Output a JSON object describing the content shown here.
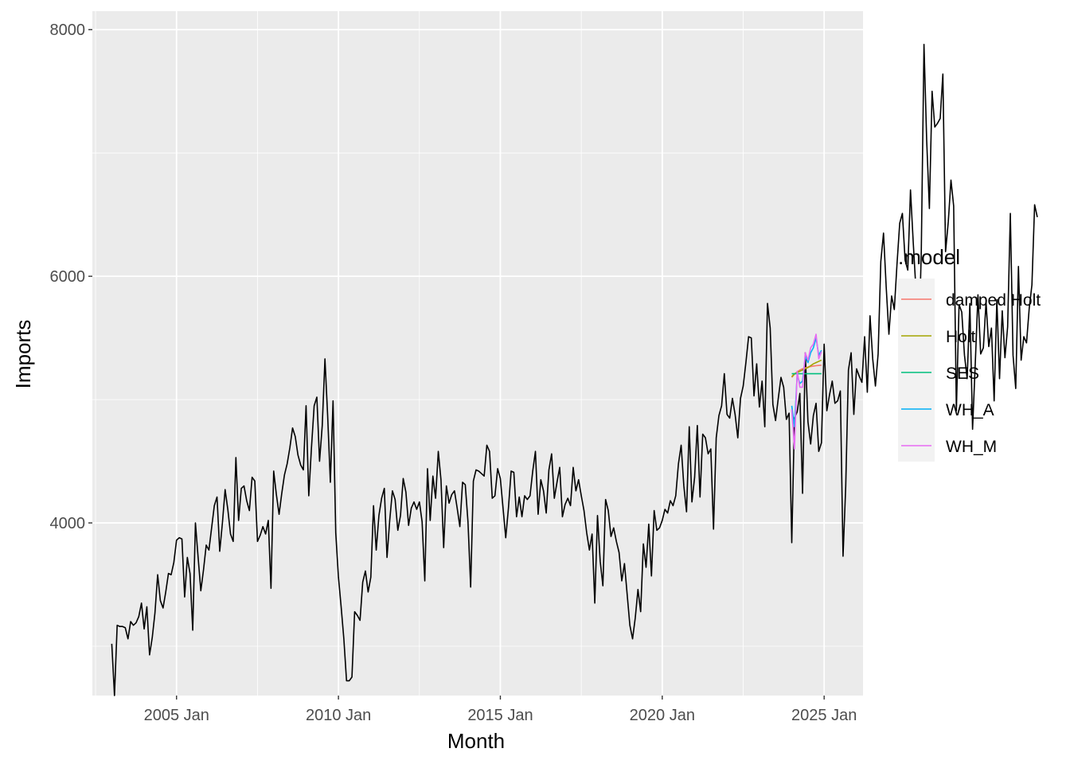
{
  "chart_data": {
    "type": "line",
    "xlabel": "Month",
    "ylabel": "Imports",
    "xlim": [
      2002.4,
      2026.2
    ],
    "ylim": [
      2600,
      8150
    ],
    "x_ticks": [
      2005,
      2010,
      2015,
      2020,
      2025
    ],
    "x_tick_labels": [
      "2005 Jan",
      "2010 Jan",
      "2015 Jan",
      "2020 Jan",
      "2025 Jan"
    ],
    "y_ticks": [
      4000,
      6000,
      8000
    ],
    "y_tick_labels": [
      "4000",
      "6000",
      "8000"
    ],
    "grid": true,
    "legend": {
      "title": ".model",
      "position": "right"
    },
    "actual": {
      "color": "#000000",
      "start": 2003.0,
      "step": 0.08333333,
      "values": [
        3020,
        2600,
        3170,
        3160,
        3160,
        3150,
        3060,
        3200,
        3170,
        3190,
        3240,
        3350,
        3140,
        3320,
        2930,
        3070,
        3270,
        3580,
        3370,
        3310,
        3440,
        3590,
        3580,
        3680,
        3860,
        3880,
        3870,
        3400,
        3720,
        3590,
        3130,
        4000,
        3720,
        3450,
        3620,
        3820,
        3780,
        3960,
        4140,
        4210,
        3770,
        4000,
        4270,
        4110,
        3910,
        3850,
        4530,
        4020,
        4280,
        4300,
        4180,
        4100,
        4370,
        4340,
        3850,
        3900,
        3970,
        3910,
        4020,
        3470,
        4420,
        4230,
        4070,
        4240,
        4390,
        4480,
        4610,
        4770,
        4700,
        4550,
        4470,
        4430,
        4950,
        4220,
        4610,
        4950,
        5020,
        4500,
        4790,
        5330,
        4870,
        4330,
        4990,
        3920,
        3560,
        3320,
        3060,
        2720,
        2720,
        2750,
        3280,
        3250,
        3210,
        3520,
        3610,
        3440,
        3560,
        4140,
        3780,
        4060,
        4200,
        4280,
        3720,
        4020,
        4260,
        4190,
        3940,
        4060,
        4360,
        4250,
        3980,
        4120,
        4170,
        4110,
        4170,
        4010,
        3530,
        4440,
        4020,
        4380,
        4200,
        4580,
        4350,
        3800,
        4300,
        4160,
        4230,
        4260,
        4120,
        3970,
        4330,
        4310,
        4010,
        3480,
        4340,
        4430,
        4420,
        4400,
        4380,
        4630,
        4580,
        4200,
        4220,
        4440,
        4360,
        4120,
        3880,
        4120,
        4420,
        4410,
        4050,
        4210,
        4050,
        4220,
        4190,
        4220,
        4420,
        4580,
        4070,
        4350,
        4260,
        4080,
        4430,
        4560,
        4200,
        4330,
        4450,
        4050,
        4150,
        4200,
        4140,
        4450,
        4260,
        4350,
        4220,
        4100,
        3920,
        3780,
        3910,
        3350,
        4060,
        3690,
        3490,
        4190,
        4100,
        3890,
        3960,
        3850,
        3760,
        3530,
        3670,
        3420,
        3170,
        3060,
        3230,
        3460,
        3280,
        3830,
        3640,
        3990,
        3570,
        4100,
        3940,
        3960,
        4020,
        4110,
        4080,
        4180,
        4140,
        4220,
        4480,
        4630,
        4300,
        4090,
        4780,
        4170,
        4370,
        4790,
        4210,
        4720,
        4690,
        4560,
        4600,
        3950,
        4690,
        4870,
        4950,
        5210,
        4880,
        4850,
        5010,
        4880,
        4690,
        5010,
        5110,
        5300,
        5510,
        5500,
        5030,
        5290,
        4940,
        5150,
        4780,
        5780,
        5580,
        4960,
        4830,
        5010,
        5180,
        5100,
        4840,
        4890,
        3840,
        4850,
        4900,
        5050,
        4240,
        5380,
        4820,
        4640,
        4870,
        4970,
        4580,
        4650,
        5450,
        4910,
        5040,
        5150,
        4970,
        4990,
        5070,
        3730,
        4300,
        5240,
        5380,
        4880,
        5250,
        5190,
        5140,
        5510,
        5060,
        5680,
        5330,
        5110,
        5370,
        6120,
        6350,
        5910,
        5530,
        5840,
        5730,
        6100,
        6430,
        6510,
        6130,
        6050,
        6700,
        6280,
        5900,
        5360,
        6200,
        7880,
        7100,
        6550,
        7500,
        7210,
        7240,
        7280,
        7640,
        6200,
        6440,
        6780,
        6570,
        4910,
        5770,
        5710,
        5360,
        5170,
        5780,
        4760,
        5290,
        5850,
        5370,
        5420,
        5790,
        5430,
        5580,
        4990,
        5810,
        5170,
        5720,
        5340,
        5590,
        6510,
        5360,
        5090,
        6080,
        5320,
        5510,
        5460,
        5740,
        5930,
        6580,
        6480
      ]
    },
    "series": [
      {
        "name": "damped Holt",
        "color": "#F8766D",
        "values": [
          5180,
          5205,
          5225,
          5240,
          5250,
          5258,
          5264,
          5268,
          5272,
          5275,
          5277,
          5279
        ]
      },
      {
        "name": "Holt",
        "color": "#A3A500",
        "values": [
          5185,
          5210,
          5220,
          5230,
          5240,
          5250,
          5260,
          5275,
          5290,
          5300,
          5310,
          5320
        ]
      },
      {
        "name": "SES",
        "color": "#00BF7D",
        "values": [
          5210,
          5210,
          5210,
          5210,
          5210,
          5210,
          5210,
          5210,
          5210,
          5210,
          5210,
          5210
        ]
      },
      {
        "name": "WH_A",
        "color": "#00B0F6",
        "values": [
          4950,
          4780,
          5200,
          5130,
          5150,
          5350,
          5300,
          5380,
          5420,
          5500,
          5360,
          5400
        ]
      },
      {
        "name": "WH_M",
        "color": "#E76BF3",
        "values": [
          4920,
          4600,
          5230,
          5100,
          5100,
          5380,
          5320,
          5420,
          5450,
          5530,
          5330,
          5390
        ]
      }
    ],
    "forecast_start": 2024.0,
    "forecast_step": 0.08333333
  }
}
